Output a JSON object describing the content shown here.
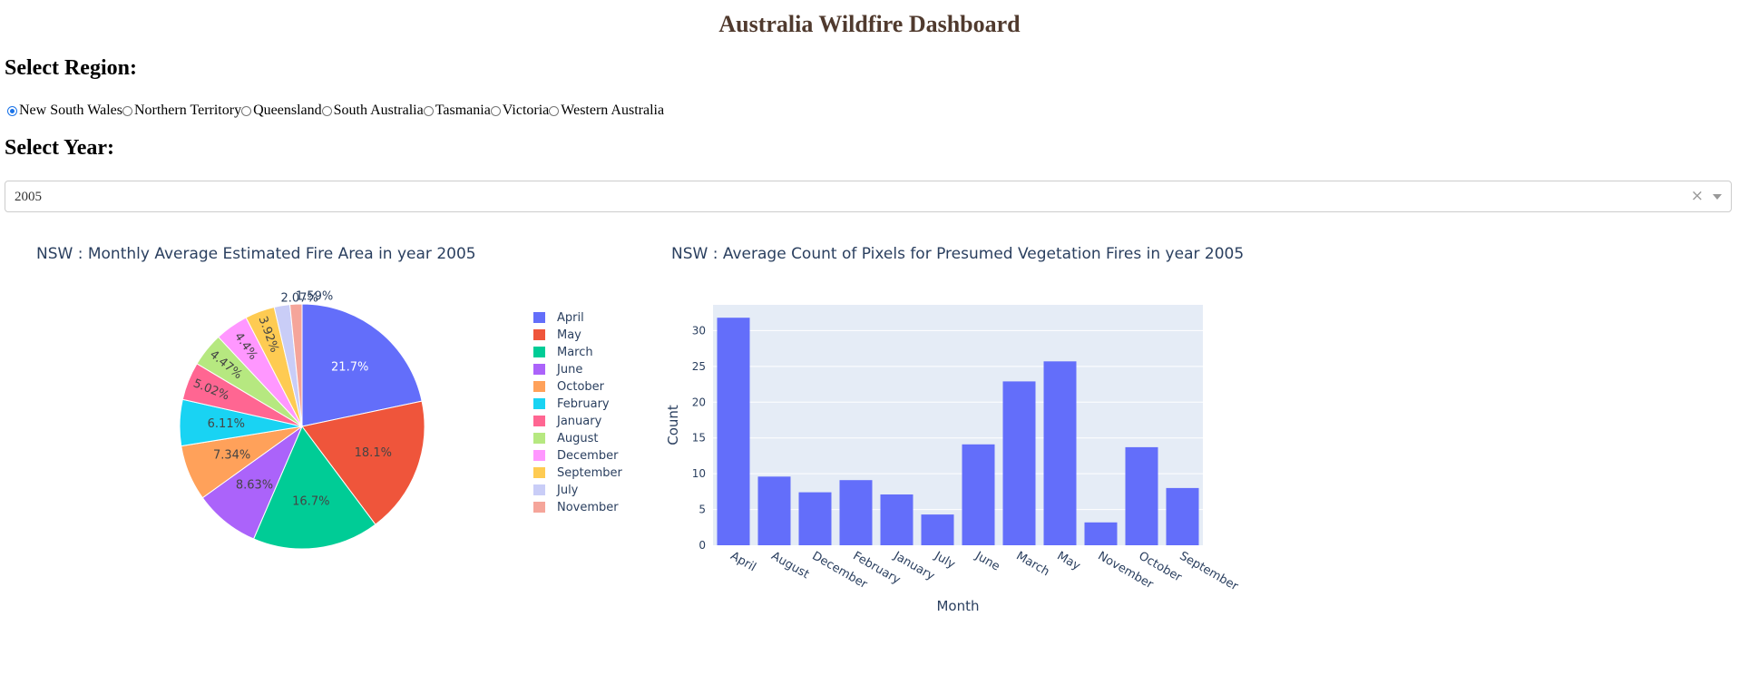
{
  "title": "Australia Wildfire Dashboard",
  "region": {
    "heading": "Select Region:",
    "options": [
      "New South Wales",
      "Northern Territory",
      "Queensland",
      "South Australia",
      "Tasmania",
      "Victoria",
      "Western Australia"
    ],
    "selected": "New South Wales"
  },
  "year": {
    "heading": "Select Year:",
    "value": "2005",
    "clear_glyph": "×"
  },
  "chart_data": [
    {
      "type": "pie",
      "title": "NSW : Monthly Average Estimated Fire Area in year 2005",
      "labels": [
        "April",
        "May",
        "March",
        "June",
        "October",
        "February",
        "January",
        "August",
        "December",
        "September",
        "July",
        "November"
      ],
      "values": [
        21.7,
        18.1,
        16.7,
        8.63,
        7.34,
        6.11,
        5.02,
        4.47,
        4.4,
        3.92,
        2.07,
        1.59
      ],
      "value_labels": [
        "21.7%",
        "18.1%",
        "16.7%",
        "8.63%",
        "7.34%",
        "6.11%",
        "5.02%",
        "4.47%",
        "4.4%",
        "3.92%",
        "2.07%",
        "1.59%"
      ],
      "colors": [
        "#636efa",
        "#EF553B",
        "#00cc96",
        "#ab63fa",
        "#FFA15A",
        "#19d3f3",
        "#FF6692",
        "#B6E880",
        "#FF97FF",
        "#FECB52",
        "#c9cdf7",
        "#f5a59a"
      ],
      "legend_position": "right"
    },
    {
      "type": "bar",
      "title": "NSW : Average Count of Pixels for Presumed Vegetation Fires in year 2005",
      "categories": [
        "April",
        "August",
        "December",
        "February",
        "January",
        "July",
        "June",
        "March",
        "May",
        "November",
        "October",
        "September"
      ],
      "values": [
        31.8,
        9.6,
        7.4,
        9.1,
        7.1,
        4.3,
        14.1,
        22.9,
        25.7,
        3.2,
        13.7,
        8.0
      ],
      "xlabel": "Month",
      "ylabel": "Count",
      "ylim": [
        0,
        33.6
      ],
      "yticks": [
        0,
        5,
        10,
        15,
        20,
        25,
        30
      ],
      "bar_color": "#636efa",
      "plot_bg": "#e5ecf6",
      "grid": true
    }
  ]
}
